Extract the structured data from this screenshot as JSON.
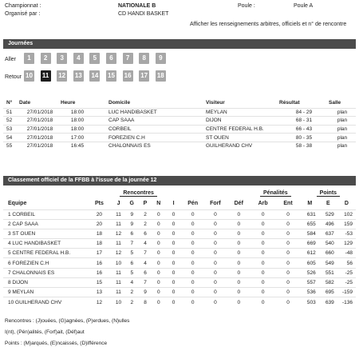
{
  "header": {
    "championnat_label": "Championnat :",
    "championnat_value": "NATIONALE B",
    "organise_label": "Organisé par :",
    "organise_value": "CD HANDI BASKET",
    "poule_label": "Poule :",
    "poule_value": "Poule A",
    "info_link": "Afficher les renseignements arbitres, officiels et n° de rencontre"
  },
  "journees": {
    "title": "Journées",
    "aller_label": "Aller",
    "retour_label": "Retour",
    "aller": [
      "1",
      "2",
      "3",
      "4",
      "5",
      "6",
      "7",
      "8",
      "9"
    ],
    "retour": [
      "10",
      "11",
      "12",
      "13",
      "14",
      "15",
      "16",
      "17",
      "18"
    ],
    "selected": "11"
  },
  "games": {
    "headers": [
      "N°",
      "Date",
      "Heure",
      "Domicile",
      "Visiteur",
      "Résultat",
      "Salle"
    ],
    "rows": [
      [
        "51",
        "27/01/2018",
        "18:00",
        "LUC HANDIBASKET",
        "MEYLAN",
        "84 - 29",
        "plan"
      ],
      [
        "52",
        "27/01/2018",
        "18:00",
        "CAP SAAA",
        "DIJON",
        "68 - 31",
        "plan"
      ],
      [
        "53",
        "27/01/2018",
        "18:00",
        "CORBEIL",
        "CENTRE FEDERAL H.B.",
        "66 - 43",
        "plan"
      ],
      [
        "54",
        "27/01/2018",
        "17:00",
        "FOREZIEN C.H",
        "ST OUEN",
        "80 - 35",
        "plan"
      ],
      [
        "55",
        "27/01/2018",
        "16:45",
        "CHALONNAIS ES",
        "GUILHERAND CHV",
        "58 - 38",
        "plan"
      ]
    ]
  },
  "ranking": {
    "title": "Classement officiel de la FFBB à l'issue de la journée 12",
    "group_headers": {
      "rencontres": "Rencontres",
      "penalites": "Pénalités",
      "points": "Points"
    },
    "headers": [
      "Equipe",
      "Pts",
      "J",
      "G",
      "P",
      "N",
      "I",
      "Pén",
      "Forf",
      "Déf",
      "Arb",
      "Ent",
      "M",
      "E",
      "D"
    ],
    "rows": [
      [
        "1",
        "CORBEIL",
        "20",
        "11",
        "9",
        "2",
        "0",
        "0",
        "0",
        "0",
        "0",
        "0",
        "0",
        "631",
        "529",
        "102"
      ],
      [
        "2",
        "CAP SAAA",
        "20",
        "11",
        "9",
        "2",
        "0",
        "0",
        "0",
        "0",
        "0",
        "0",
        "0",
        "655",
        "496",
        "159"
      ],
      [
        "3",
        "ST OUEN",
        "18",
        "12",
        "6",
        "6",
        "0",
        "0",
        "0",
        "0",
        "0",
        "0",
        "0",
        "584",
        "637",
        "-53"
      ],
      [
        "4",
        "LUC HANDIBASKET",
        "18",
        "11",
        "7",
        "4",
        "0",
        "0",
        "0",
        "0",
        "0",
        "0",
        "0",
        "669",
        "540",
        "129"
      ],
      [
        "5",
        "CENTRE FEDERAL H.B.",
        "17",
        "12",
        "5",
        "7",
        "0",
        "0",
        "0",
        "0",
        "0",
        "0",
        "0",
        "612",
        "660",
        "-48"
      ],
      [
        "6",
        "FOREZIEN C.H",
        "16",
        "10",
        "6",
        "4",
        "0",
        "0",
        "0",
        "0",
        "0",
        "0",
        "0",
        "605",
        "549",
        "56"
      ],
      [
        "7",
        "CHALONNAIS ES",
        "16",
        "11",
        "5",
        "6",
        "0",
        "0",
        "0",
        "0",
        "0",
        "0",
        "0",
        "526",
        "551",
        "-25"
      ],
      [
        "8",
        "DIJON",
        "15",
        "11",
        "4",
        "7",
        "0",
        "0",
        "0",
        "0",
        "0",
        "0",
        "0",
        "557",
        "582",
        "-25"
      ],
      [
        "9",
        "MEYLAN",
        "13",
        "11",
        "2",
        "9",
        "0",
        "0",
        "0",
        "0",
        "0",
        "0",
        "0",
        "536",
        "695",
        "-159"
      ],
      [
        "10",
        "GUILHERAND CHV",
        "12",
        "10",
        "2",
        "8",
        "0",
        "0",
        "0",
        "0",
        "0",
        "0",
        "0",
        "503",
        "639",
        "-136"
      ]
    ]
  },
  "legend": [
    "Rencontres : (J)ouées, (G)agnées, (P)erdues, (N)ulles",
    "I(nt), (Pén)alités, (Forf)ait, (Déf)aut",
    "Points : (M)arqués, (E)ncaissés, (D)ifférence"
  ]
}
